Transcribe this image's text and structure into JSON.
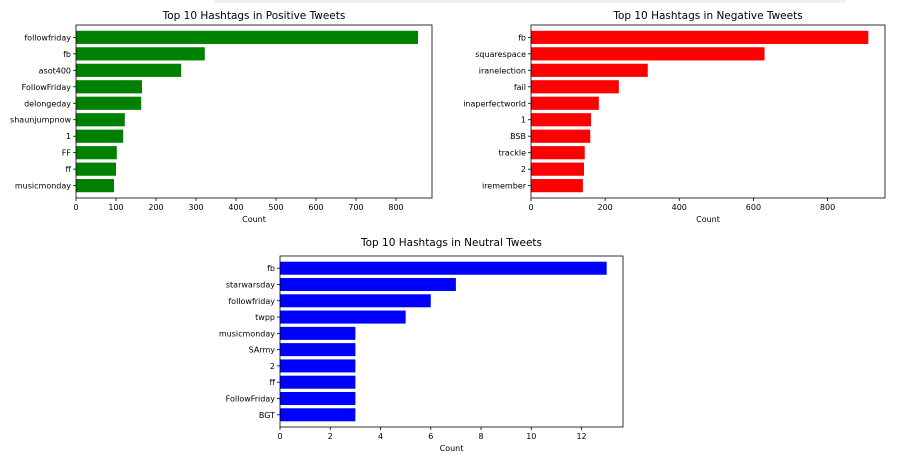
{
  "chart_data": [
    {
      "type": "bar",
      "orientation": "horizontal",
      "title": "Top 10 Hashtags in Positive Tweets",
      "xlabel": "Count",
      "ylabel": "",
      "categories": [
        "followfriday",
        "fb",
        "asot400",
        "FollowFriday",
        "delongeday",
        "shaunjumpnow",
        "1",
        "FF",
        "ff",
        "musicmonday"
      ],
      "values": [
        855,
        322,
        263,
        165,
        163,
        122,
        118,
        102,
        100,
        95
      ],
      "xlim": [
        0,
        890
      ],
      "xticks": [
        0,
        100,
        200,
        300,
        400,
        500,
        600,
        700,
        800
      ],
      "color": "#008000",
      "grid": false
    },
    {
      "type": "bar",
      "orientation": "horizontal",
      "title": "Top 10 Hashtags in Negative Tweets",
      "xlabel": "Count",
      "ylabel": "",
      "categories": [
        "fb",
        "squarespace",
        "iranelection",
        "fail",
        "inaperfectworld",
        "1",
        "BSB",
        "trackle",
        "2",
        "iremember"
      ],
      "values": [
        910,
        630,
        315,
        237,
        183,
        162,
        160,
        145,
        143,
        140
      ],
      "xlim": [
        0,
        955
      ],
      "xticks": [
        0,
        200,
        400,
        600,
        800
      ],
      "color": "#ff0000",
      "grid": false
    },
    {
      "type": "bar",
      "orientation": "horizontal",
      "title": "Top 10 Hashtags in Neutral Tweets",
      "xlabel": "Count",
      "ylabel": "",
      "categories": [
        "fb",
        "starwarsday",
        "followfriday",
        "twpp",
        "musicmonday",
        "SArmy",
        "2",
        "ff",
        "FollowFriday",
        "BGT"
      ],
      "values": [
        13,
        7,
        6,
        5,
        3,
        3,
        3,
        3,
        3,
        3
      ],
      "xlim": [
        0,
        13.65
      ],
      "xticks": [
        0,
        2,
        4,
        6,
        8,
        10,
        12
      ],
      "color": "#0000ff",
      "grid": false
    }
  ]
}
